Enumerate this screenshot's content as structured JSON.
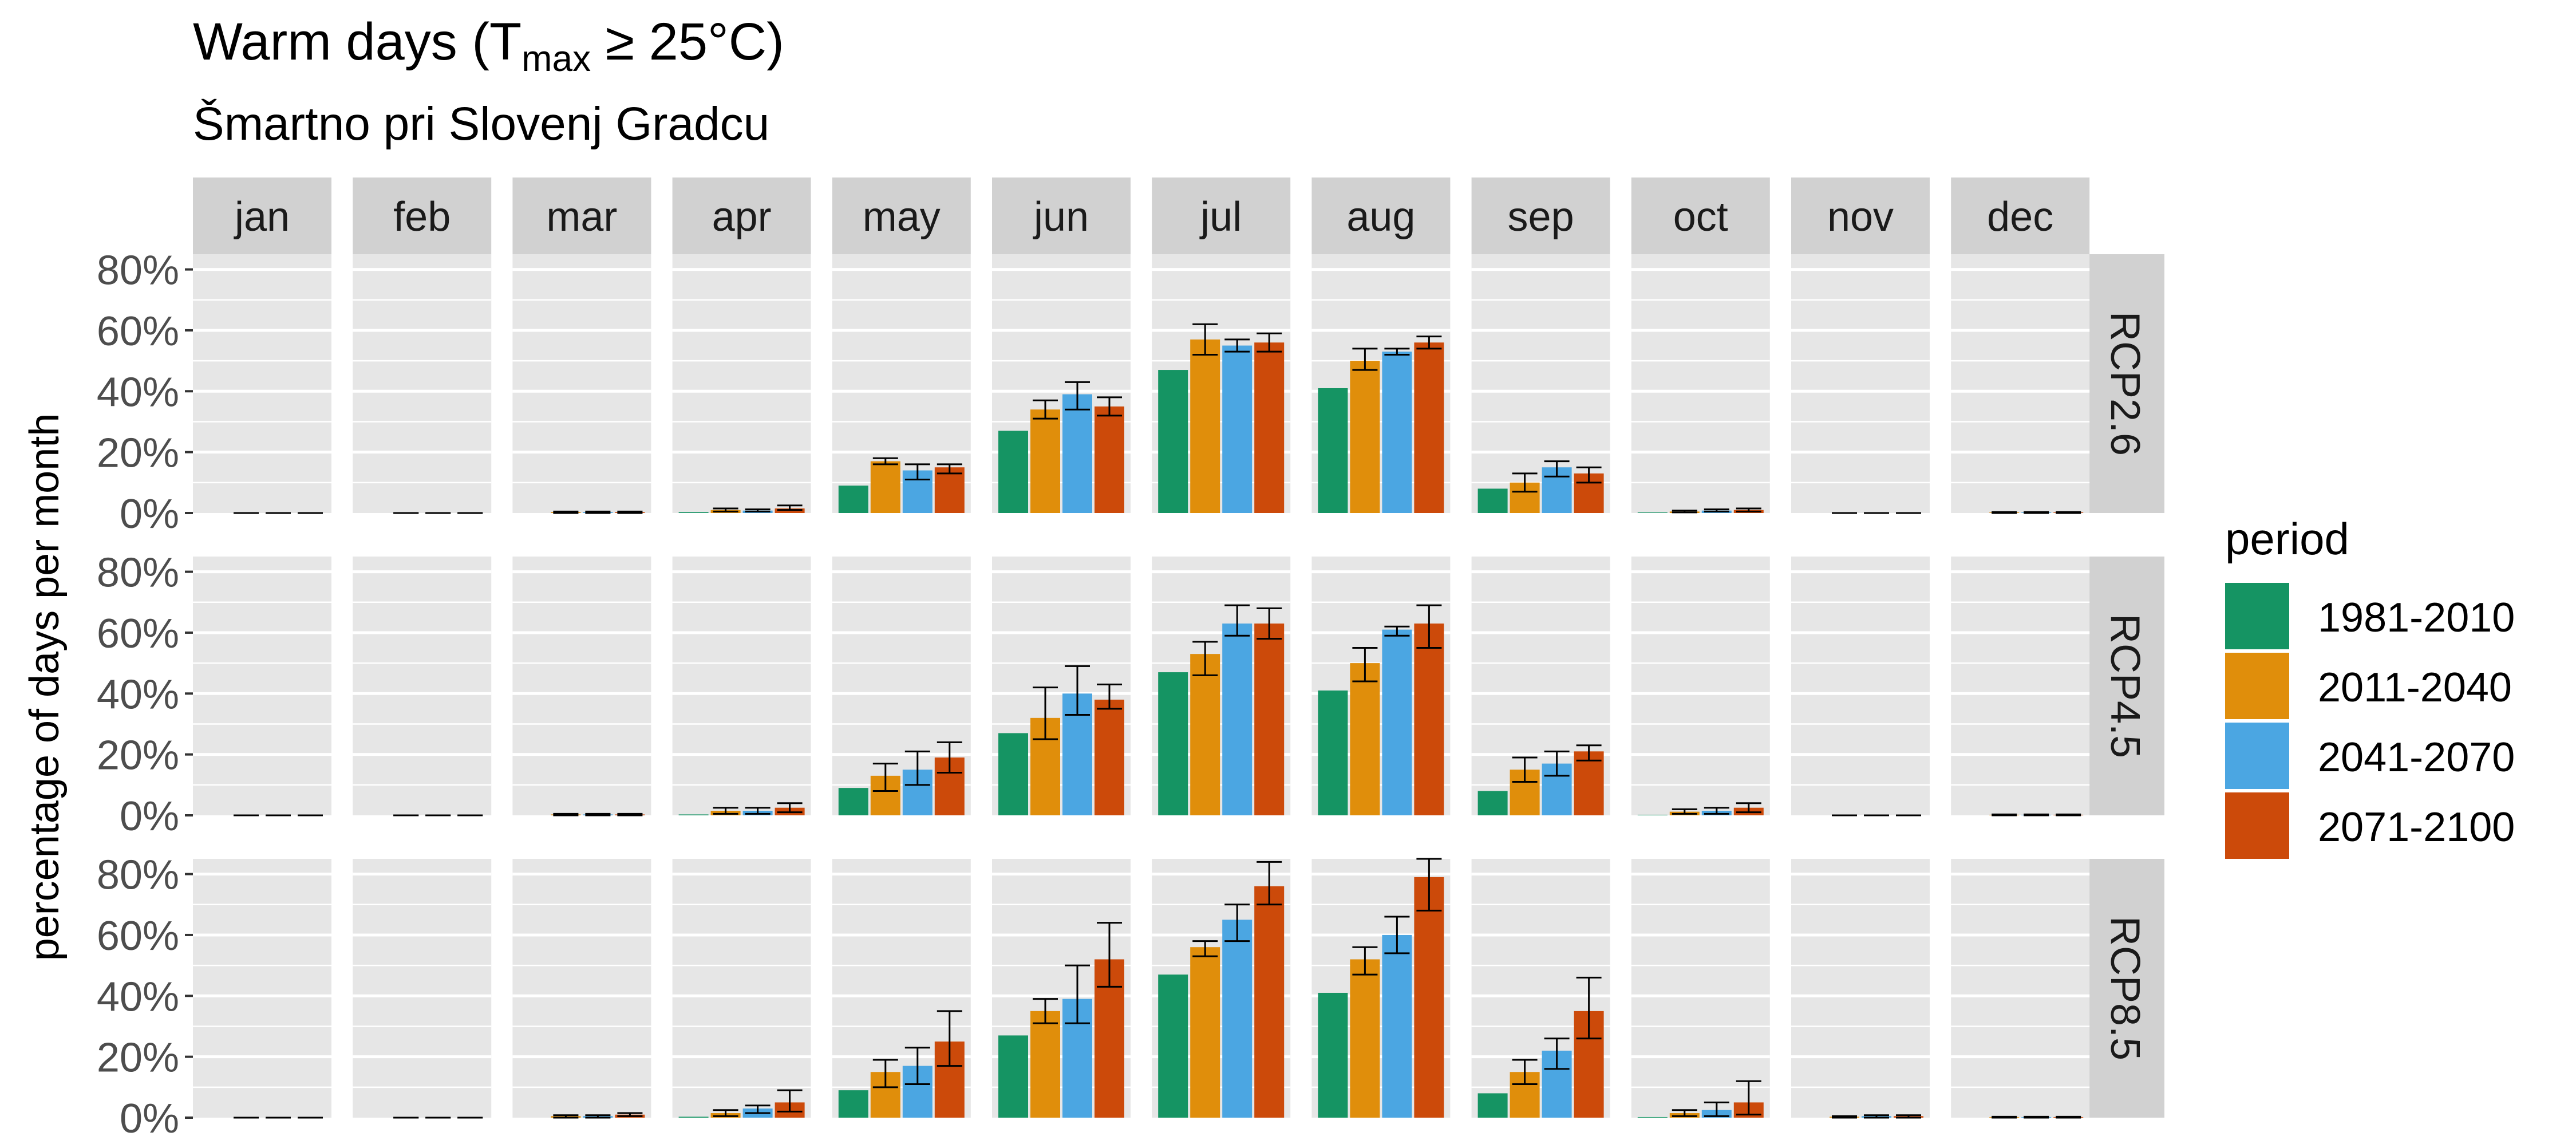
{
  "chart_data": {
    "type": "bar",
    "title_main": "Warm days (T",
    "title_sub": "max",
    "title_end": " ≥ 25°C)",
    "subtitle": "Šmartno pri Slovenj Gradcu",
    "ylabel": "percentage of days per month",
    "xlabel": "",
    "ylim": [
      0,
      85
    ],
    "y_ticks": [
      0,
      20,
      40,
      60,
      80
    ],
    "y_tick_labels": [
      "0%",
      "20%",
      "40%",
      "60%",
      "80%"
    ],
    "grid": true,
    "legend_position": "right",
    "legend_title": "period",
    "months": [
      "jan",
      "feb",
      "mar",
      "apr",
      "may",
      "jun",
      "jul",
      "aug",
      "sep",
      "oct",
      "nov",
      "dec"
    ],
    "scenarios": [
      "RCP2.6",
      "RCP4.5",
      "RCP8.5"
    ],
    "periods": [
      "1981-2010",
      "2011-2040",
      "2041-2070",
      "2071-2100"
    ],
    "colors": {
      "1981-2010": "#159463",
      "2011-2040": "#E08E0B",
      "2041-2070": "#4BA6E2",
      "2071-2100": "#CC4A0A",
      "panel_bg": "#E6E6E6",
      "strip_bg": "#D1D1D1"
    },
    "baseline": [
      0,
      0,
      0,
      0.3,
      9,
      27,
      47,
      41,
      8,
      0.2,
      0,
      0
    ],
    "series": {
      "RCP2.6": {
        "2011-2040": [
          0,
          0,
          0.3,
          1,
          17,
          34,
          57,
          50,
          10,
          0.5,
          0,
          0.2
        ],
        "2041-2070": [
          0,
          0,
          0.3,
          0.8,
          14,
          39,
          55,
          53,
          15,
          0.8,
          0,
          0.2
        ],
        "2071-2100": [
          0,
          0,
          0.3,
          1.5,
          15,
          35,
          56,
          56,
          13,
          1,
          0,
          0.2
        ],
        "err_lo": {
          "2011-2040": [
            0,
            0,
            0,
            0.5,
            16,
            31,
            52,
            47,
            7,
            0.2,
            0,
            0
          ],
          "2041-2070": [
            0,
            0,
            0,
            0.5,
            11,
            34,
            53,
            52,
            12,
            0.5,
            0,
            0
          ],
          "2071-2100": [
            0,
            0,
            0,
            1,
            13,
            32,
            53,
            54,
            10,
            0.5,
            0,
            0
          ]
        },
        "err_hi": {
          "2011-2040": [
            0,
            0,
            0.5,
            1.5,
            18,
            37,
            62,
            54,
            13,
            0.8,
            0,
            0.3
          ],
          "2041-2070": [
            0,
            0,
            0.5,
            1.2,
            16,
            43,
            57,
            54,
            17,
            1.2,
            0,
            0.3
          ],
          "2071-2100": [
            0,
            0,
            0.5,
            2.5,
            16,
            38,
            59,
            58,
            15,
            1.5,
            0,
            0.3
          ]
        }
      },
      "RCP4.5": {
        "2011-2040": [
          0,
          0,
          0.3,
          1.5,
          13,
          32,
          53,
          50,
          15,
          1.2,
          0,
          0.2
        ],
        "2041-2070": [
          0,
          0,
          0.3,
          1.5,
          15,
          40,
          63,
          61,
          17,
          1.5,
          0,
          0.2
        ],
        "2071-2100": [
          0,
          0,
          0.3,
          2.5,
          19,
          38,
          63,
          63,
          21,
          2.5,
          0,
          0.2
        ],
        "err_lo": {
          "2011-2040": [
            0,
            0,
            0,
            0.5,
            8,
            25,
            46,
            44,
            11,
            0.5,
            0,
            0
          ],
          "2041-2070": [
            0,
            0,
            0,
            0.5,
            10,
            33,
            59,
            59,
            13,
            0.5,
            0,
            0
          ],
          "2071-2100": [
            0,
            0,
            0,
            1,
            14,
            35,
            58,
            55,
            18,
            1,
            0,
            0
          ]
        },
        "err_hi": {
          "2011-2040": [
            0,
            0,
            0.5,
            2.5,
            17,
            42,
            57,
            55,
            19,
            2,
            0,
            0.3
          ],
          "2041-2070": [
            0,
            0,
            0.5,
            2.5,
            21,
            49,
            69,
            62,
            21,
            2.5,
            0,
            0.3
          ],
          "2071-2100": [
            0,
            0,
            0.5,
            4,
            24,
            43,
            68,
            69,
            23,
            4,
            0,
            0.3
          ]
        }
      },
      "RCP8.5": {
        "2011-2040": [
          0,
          0,
          0.5,
          1.5,
          15,
          35,
          56,
          52,
          15,
          1.5,
          0.3,
          0.2
        ],
        "2041-2070": [
          0,
          0,
          0.5,
          3,
          17,
          39,
          65,
          60,
          22,
          2.5,
          0.5,
          0.2
        ],
        "2071-2100": [
          0,
          0,
          1,
          5,
          25,
          52,
          76,
          79,
          35,
          5,
          0.5,
          0.2
        ],
        "err_lo": {
          "2011-2040": [
            0,
            0,
            0,
            0.5,
            10,
            31,
            53,
            47,
            11,
            0.5,
            0,
            0
          ],
          "2041-2070": [
            0,
            0,
            0,
            1.5,
            11,
            31,
            58,
            54,
            16,
            0.5,
            0,
            0
          ],
          "2071-2100": [
            0,
            0,
            0.5,
            2,
            17,
            43,
            70,
            68,
            26,
            1,
            0,
            0
          ]
        },
        "err_hi": {
          "2011-2040": [
            0,
            0,
            0.8,
            2.5,
            19,
            39,
            58,
            56,
            19,
            2.5,
            0.5,
            0.3
          ],
          "2041-2070": [
            0,
            0,
            0.8,
            4,
            23,
            50,
            70,
            66,
            26,
            5,
            0.8,
            0.3
          ],
          "2071-2100": [
            0,
            0,
            1.5,
            9,
            35,
            64,
            84,
            85,
            46,
            12,
            0.8,
            0.3
          ]
        }
      }
    }
  }
}
